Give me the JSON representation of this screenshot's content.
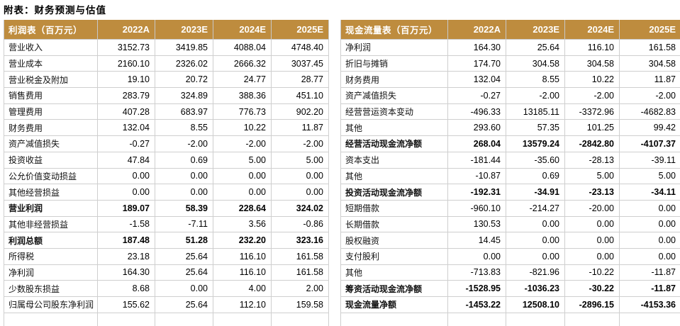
{
  "title": "附表：财务预测与估值",
  "colors": {
    "header_bg": "#BE8C3E",
    "header_text": "#FFFFFF",
    "grid_line": "#CFCFCF",
    "body_text": "#000000"
  },
  "tables": [
    {
      "id": "income-statement",
      "header": [
        "利润表（百万元）",
        "2022A",
        "2023E",
        "2024E",
        "2025E"
      ],
      "rows": [
        {
          "label": "营业收入",
          "values": [
            "3152.73",
            "3419.85",
            "4088.04",
            "4748.40"
          ],
          "bold": false
        },
        {
          "label": "营业成本",
          "values": [
            "2160.10",
            "2326.02",
            "2666.32",
            "3037.45"
          ],
          "bold": false
        },
        {
          "label": "营业税金及附加",
          "values": [
            "19.10",
            "20.72",
            "24.77",
            "28.77"
          ],
          "bold": false
        },
        {
          "label": "销售费用",
          "values": [
            "283.79",
            "324.89",
            "388.36",
            "451.10"
          ],
          "bold": false
        },
        {
          "label": "管理费用",
          "values": [
            "407.28",
            "683.97",
            "776.73",
            "902.20"
          ],
          "bold": false
        },
        {
          "label": "财务费用",
          "values": [
            "132.04",
            "8.55",
            "10.22",
            "11.87"
          ],
          "bold": false
        },
        {
          "label": "资产减值损失",
          "values": [
            "-0.27",
            "-2.00",
            "-2.00",
            "-2.00"
          ],
          "bold": false
        },
        {
          "label": "投资收益",
          "values": [
            "47.84",
            "0.69",
            "5.00",
            "5.00"
          ],
          "bold": false
        },
        {
          "label": "公允价值变动损益",
          "values": [
            "0.00",
            "0.00",
            "0.00",
            "0.00"
          ],
          "bold": false
        },
        {
          "label": "其他经营损益",
          "values": [
            "0.00",
            "0.00",
            "0.00",
            "0.00"
          ],
          "bold": false
        },
        {
          "label": "营业利润",
          "values": [
            "189.07",
            "58.39",
            "228.64",
            "324.02"
          ],
          "bold": true
        },
        {
          "label": "其他非经营损益",
          "values": [
            "-1.58",
            "-7.11",
            "3.56",
            "-0.86"
          ],
          "bold": false
        },
        {
          "label": "利润总额",
          "values": [
            "187.48",
            "51.28",
            "232.20",
            "323.16"
          ],
          "bold": true
        },
        {
          "label": "所得税",
          "values": [
            "23.18",
            "25.64",
            "116.10",
            "161.58"
          ],
          "bold": false
        },
        {
          "label": "净利润",
          "values": [
            "164.30",
            "25.64",
            "116.10",
            "161.58"
          ],
          "bold": false
        },
        {
          "label": "少数股东损益",
          "values": [
            "8.68",
            "0.00",
            "4.00",
            "2.00"
          ],
          "bold": false
        },
        {
          "label": "归属母公司股东净利润",
          "values": [
            "155.62",
            "25.64",
            "112.10",
            "159.58"
          ],
          "bold": false
        }
      ]
    },
    {
      "id": "cash-flow-statement",
      "header": [
        "现金流量表（百万元）",
        "2022A",
        "2023E",
        "2024E",
        "2025E"
      ],
      "rows": [
        {
          "label": "净利润",
          "values": [
            "164.30",
            "25.64",
            "116.10",
            "161.58"
          ],
          "bold": false
        },
        {
          "label": "折旧与摊销",
          "values": [
            "174.70",
            "304.58",
            "304.58",
            "304.58"
          ],
          "bold": false
        },
        {
          "label": "财务费用",
          "values": [
            "132.04",
            "8.55",
            "10.22",
            "11.87"
          ],
          "bold": false
        },
        {
          "label": "资产减值损失",
          "values": [
            "-0.27",
            "-2.00",
            "-2.00",
            "-2.00"
          ],
          "bold": false
        },
        {
          "label": "经营营运资本变动",
          "values": [
            "-496.33",
            "13185.11",
            "-3372.96",
            "-4682.83"
          ],
          "bold": false
        },
        {
          "label": "其他",
          "values": [
            "293.60",
            "57.35",
            "101.25",
            "99.42"
          ],
          "bold": false
        },
        {
          "label": "经营活动现金流净额",
          "values": [
            "268.04",
            "13579.24",
            "-2842.80",
            "-4107.37"
          ],
          "bold": true
        },
        {
          "label": "资本支出",
          "values": [
            "-181.44",
            "-35.60",
            "-28.13",
            "-39.11"
          ],
          "bold": false
        },
        {
          "label": "其他",
          "values": [
            "-10.87",
            "0.69",
            "5.00",
            "5.00"
          ],
          "bold": false
        },
        {
          "label": "投资活动现金流净额",
          "values": [
            "-192.31",
            "-34.91",
            "-23.13",
            "-34.11"
          ],
          "bold": true
        },
        {
          "label": "短期借款",
          "values": [
            "-960.10",
            "-214.27",
            "-20.00",
            "0.00"
          ],
          "bold": false
        },
        {
          "label": "长期借款",
          "values": [
            "130.53",
            "0.00",
            "0.00",
            "0.00"
          ],
          "bold": false
        },
        {
          "label": "股权融资",
          "values": [
            "14.45",
            "0.00",
            "0.00",
            "0.00"
          ],
          "bold": false
        },
        {
          "label": "支付股利",
          "values": [
            "0.00",
            "0.00",
            "0.00",
            "0.00"
          ],
          "bold": false
        },
        {
          "label": "其他",
          "values": [
            "-713.83",
            "-821.96",
            "-10.22",
            "-11.87"
          ],
          "bold": false
        },
        {
          "label": "筹资活动现金流净额",
          "values": [
            "-1528.95",
            "-1036.23",
            "-30.22",
            "-11.87"
          ],
          "bold": true
        },
        {
          "label": "现金流量净额",
          "values": [
            "-1453.22",
            "12508.10",
            "-2896.15",
            "-4153.36"
          ],
          "bold": true
        }
      ]
    }
  ]
}
